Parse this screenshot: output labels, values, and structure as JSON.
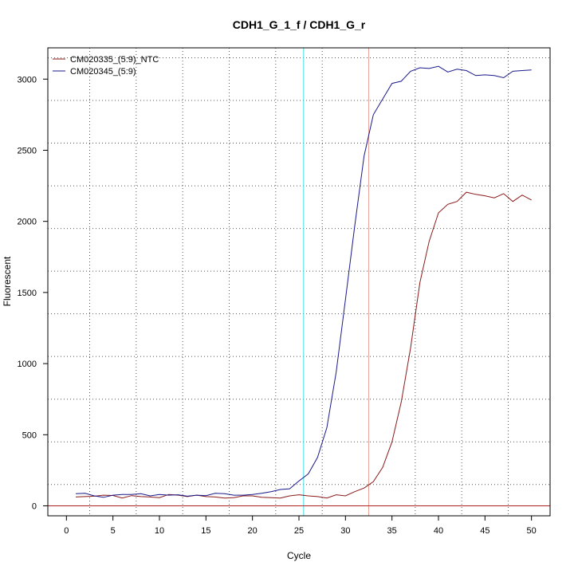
{
  "chart_data": {
    "type": "line",
    "title": "CDH1_G_1_f / CDH1_G_r",
    "xlabel": "Cycle",
    "ylabel": "Fluorescent",
    "xlim": [
      -2,
      52
    ],
    "ylim": [
      -70,
      3220
    ],
    "x_ticks": [
      0,
      5,
      10,
      15,
      20,
      25,
      30,
      35,
      40,
      45,
      50
    ],
    "y_ticks": [
      0,
      500,
      1000,
      1500,
      2000,
      2500,
      3000
    ],
    "x_grid": [
      2.5,
      7.5,
      12.5,
      17.5,
      22.5,
      27.5,
      32.5,
      37.5,
      42.5,
      47.5
    ],
    "y_grid": [
      150,
      450,
      750,
      1050,
      1350,
      1650,
      1950,
      2250,
      2550,
      2850,
      3150
    ],
    "grid": true,
    "legend_position": "top-left",
    "baseline": {
      "y": 0,
      "color": "#b22222"
    },
    "vertical_markers": [
      {
        "x": 25.5,
        "color": "#40e0e0"
      },
      {
        "x": 32.5,
        "color": "#e8a29a"
      }
    ],
    "x": [
      1,
      2,
      3,
      4,
      5,
      6,
      7,
      8,
      9,
      10,
      11,
      12,
      13,
      14,
      15,
      16,
      17,
      18,
      19,
      20,
      21,
      22,
      23,
      24,
      25,
      26,
      27,
      28,
      29,
      30,
      31,
      32,
      33,
      34,
      35,
      36,
      37,
      38,
      39,
      40,
      41,
      42,
      43,
      44,
      45,
      46,
      47,
      48,
      49,
      50
    ],
    "series": [
      {
        "name": "CM020335_(5:9)_NTC",
        "color": "#8b1a1a",
        "values": [
          62,
          65,
          68,
          75,
          73,
          55,
          72,
          65,
          62,
          58,
          80,
          75,
          65,
          75,
          65,
          62,
          55,
          58,
          70,
          70,
          60,
          58,
          55,
          70,
          78,
          70,
          65,
          55,
          78,
          70,
          100,
          125,
          170,
          270,
          450,
          730,
          1110,
          1570,
          1860,
          2060,
          2120,
          2140,
          2205,
          2190,
          2180,
          2165,
          2195,
          2140,
          2185,
          2150
        ]
      },
      {
        "name": "CM020345_(5:9)",
        "color": "#1a1a8b",
        "values": [
          85,
          88,
          70,
          60,
          75,
          80,
          80,
          85,
          70,
          80,
          75,
          78,
          68,
          75,
          72,
          88,
          85,
          75,
          75,
          80,
          88,
          100,
          115,
          120,
          175,
          225,
          340,
          550,
          940,
          1450,
          1970,
          2460,
          2750,
          2860,
          2970,
          2985,
          3055,
          3080,
          3075,
          3090,
          3050,
          3070,
          3060,
          3025,
          3030,
          3025,
          3010,
          3055,
          3060,
          3065
        ]
      }
    ]
  }
}
